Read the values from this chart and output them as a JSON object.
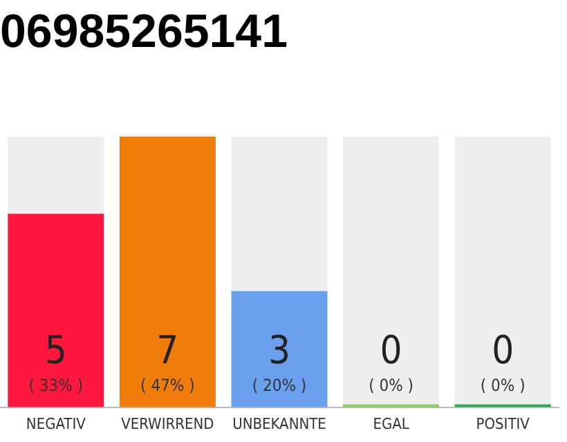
{
  "chart_data": {
    "type": "bar",
    "title": "06985265141",
    "categories": [
      "NEGATIV",
      "VERWIRREND",
      "UNBEKANNTE",
      "EGAL",
      "POSITIV"
    ],
    "stacked": true,
    "ylim": [
      0,
      7
    ],
    "tick_labels": "x",
    "grid": false,
    "legend": false,
    "series": [
      {
        "colors": [
          "#ff173d",
          "#f07d0a",
          "#6aa0ee",
          "#88cc66",
          "#2ca84a"
        ],
        "values": [
          5,
          7,
          3,
          0,
          0
        ],
        "value_labels": [
          "5\n( 33% )",
          "7\n( 47% )",
          "3\n( 20% )",
          "0\n( 0% )",
          "0\n( 0% )"
        ]
      },
      {
        "color": "#eeeeee",
        "values": [
          2,
          0,
          4,
          7,
          7
        ]
      }
    ]
  }
}
